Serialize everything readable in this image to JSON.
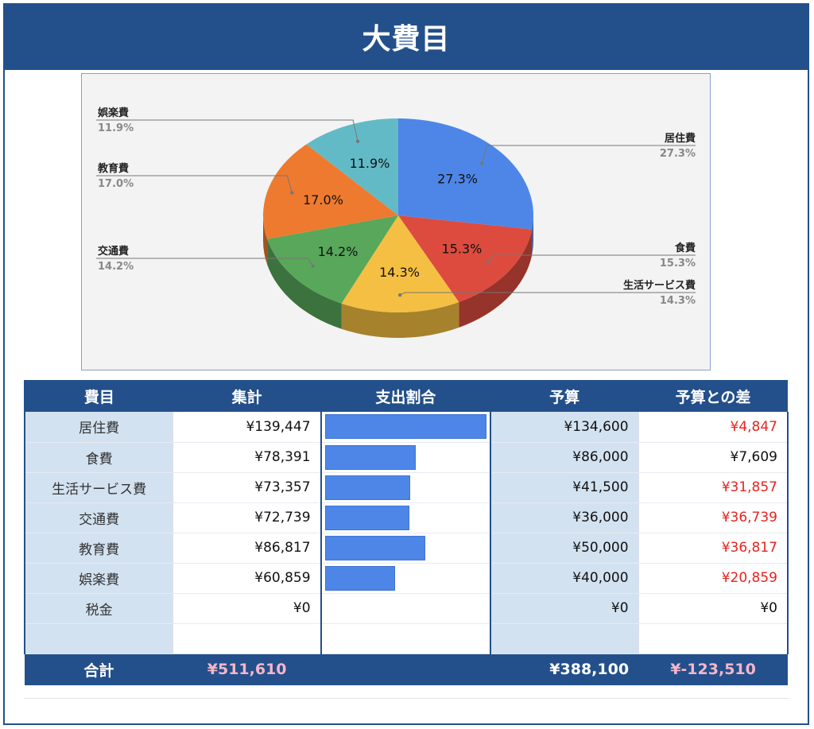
{
  "title": "大費目",
  "chart_data": {
    "type": "pie",
    "title": "",
    "slices": [
      {
        "label": "居住費",
        "value": 27.3,
        "label_text": "27.3%",
        "color": "#4e86e8"
      },
      {
        "label": "食費",
        "value": 15.3,
        "label_text": "15.3%",
        "color": "#dc4b3e"
      },
      {
        "label": "生活サービス費",
        "value": 14.3,
        "label_text": "14.3%",
        "color": "#f4bf42"
      },
      {
        "label": "交通費",
        "value": 14.2,
        "label_text": "14.2%",
        "color": "#58a75a"
      },
      {
        "label": "教育費",
        "value": 17.0,
        "label_text": "17.0%",
        "color": "#ee7a2f"
      },
      {
        "label": "娯楽費",
        "value": 11.9,
        "label_text": "11.9%",
        "color": "#63bac7"
      }
    ],
    "legend": "callouts"
  },
  "table": {
    "headers": [
      "費目",
      "集計",
      "支出割合",
      "予算",
      "予算との差"
    ],
    "rows": [
      {
        "name": "居住費",
        "total": "¥139,447",
        "share": 1.0,
        "budget": "¥134,600",
        "diff": "¥4,847",
        "diff_neg": true
      },
      {
        "name": "食費",
        "total": "¥78,391",
        "share": 0.562,
        "budget": "¥86,000",
        "diff": "¥7,609",
        "diff_neg": false
      },
      {
        "name": "生活サービス費",
        "total": "¥73,357",
        "share": 0.526,
        "budget": "¥41,500",
        "diff": "¥31,857",
        "diff_neg": true
      },
      {
        "name": "交通費",
        "total": "¥72,739",
        "share": 0.522,
        "budget": "¥36,000",
        "diff": "¥36,739",
        "diff_neg": true
      },
      {
        "name": "教育費",
        "total": "¥86,817",
        "share": 0.623,
        "budget": "¥50,000",
        "diff": "¥36,817",
        "diff_neg": true
      },
      {
        "name": "娯楽費",
        "total": "¥60,859",
        "share": 0.436,
        "budget": "¥40,000",
        "diff": "¥20,859",
        "diff_neg": true
      },
      {
        "name": "税金",
        "total": "¥0",
        "share": 0,
        "budget": "¥0",
        "diff": "¥0",
        "diff_neg": false
      },
      {
        "name": "",
        "total": "",
        "share": 0,
        "budget": "",
        "diff": "",
        "diff_neg": false
      }
    ],
    "sum": {
      "label": "合計",
      "total": "¥511,610",
      "budget": "¥388,100",
      "diff": "¥-123,510"
    }
  },
  "colors": {
    "header_blue": "#23508b",
    "light_blue": "#d3e2f1",
    "bar_blue": "#4e86e8",
    "negative_red": "#e8231f"
  }
}
